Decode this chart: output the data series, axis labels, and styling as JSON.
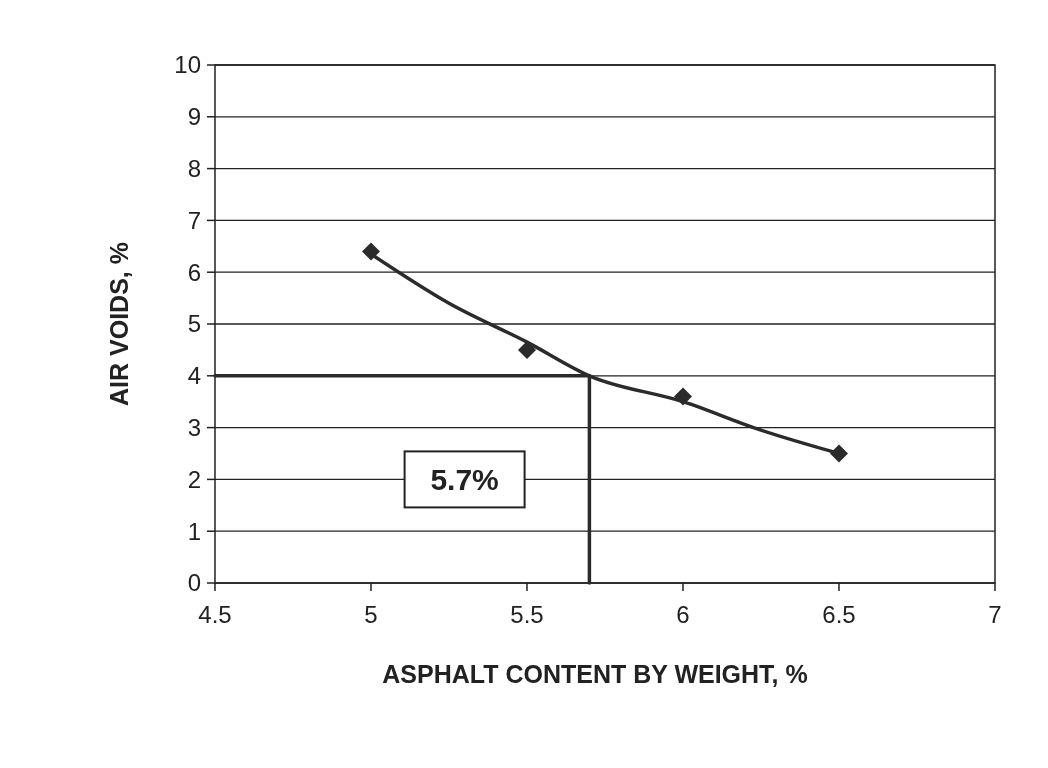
{
  "chart_data": {
    "type": "scatter",
    "xlabel": "ASPHALT CONTENT BY WEIGHT, %",
    "ylabel": "AIR VOIDS, %",
    "xlim": [
      4.5,
      7
    ],
    "xticks": [
      4.5,
      5,
      5.5,
      6,
      6.5,
      7
    ],
    "ylim": [
      0,
      10
    ],
    "yticks": [
      0,
      1,
      2,
      3,
      4,
      5,
      6,
      7,
      8,
      9,
      10
    ],
    "grid": "y",
    "series": [
      {
        "type": "scatter",
        "color": "#2b2b2b",
        "marker": "diamond",
        "x": [
          5,
          5.5,
          6,
          6.5
        ],
        "values": [
          6.4,
          4.5,
          3.6,
          2.5
        ]
      },
      {
        "type": "line",
        "color": "#2b2b2b",
        "marker": "none",
        "x": [
          5,
          5.25,
          5.5,
          5.7,
          6,
          6.25,
          6.5
        ],
        "values": [
          6.35,
          5.4,
          4.65,
          4.0,
          3.5,
          2.95,
          2.5
        ]
      },
      {
        "type": "line",
        "color": "#2b2b2b",
        "marker": "none",
        "x": [
          4.5,
          5.7,
          5.7
        ],
        "values": [
          4,
          4,
          0
        ]
      }
    ],
    "annotations": [
      "5.7%"
    ]
  }
}
